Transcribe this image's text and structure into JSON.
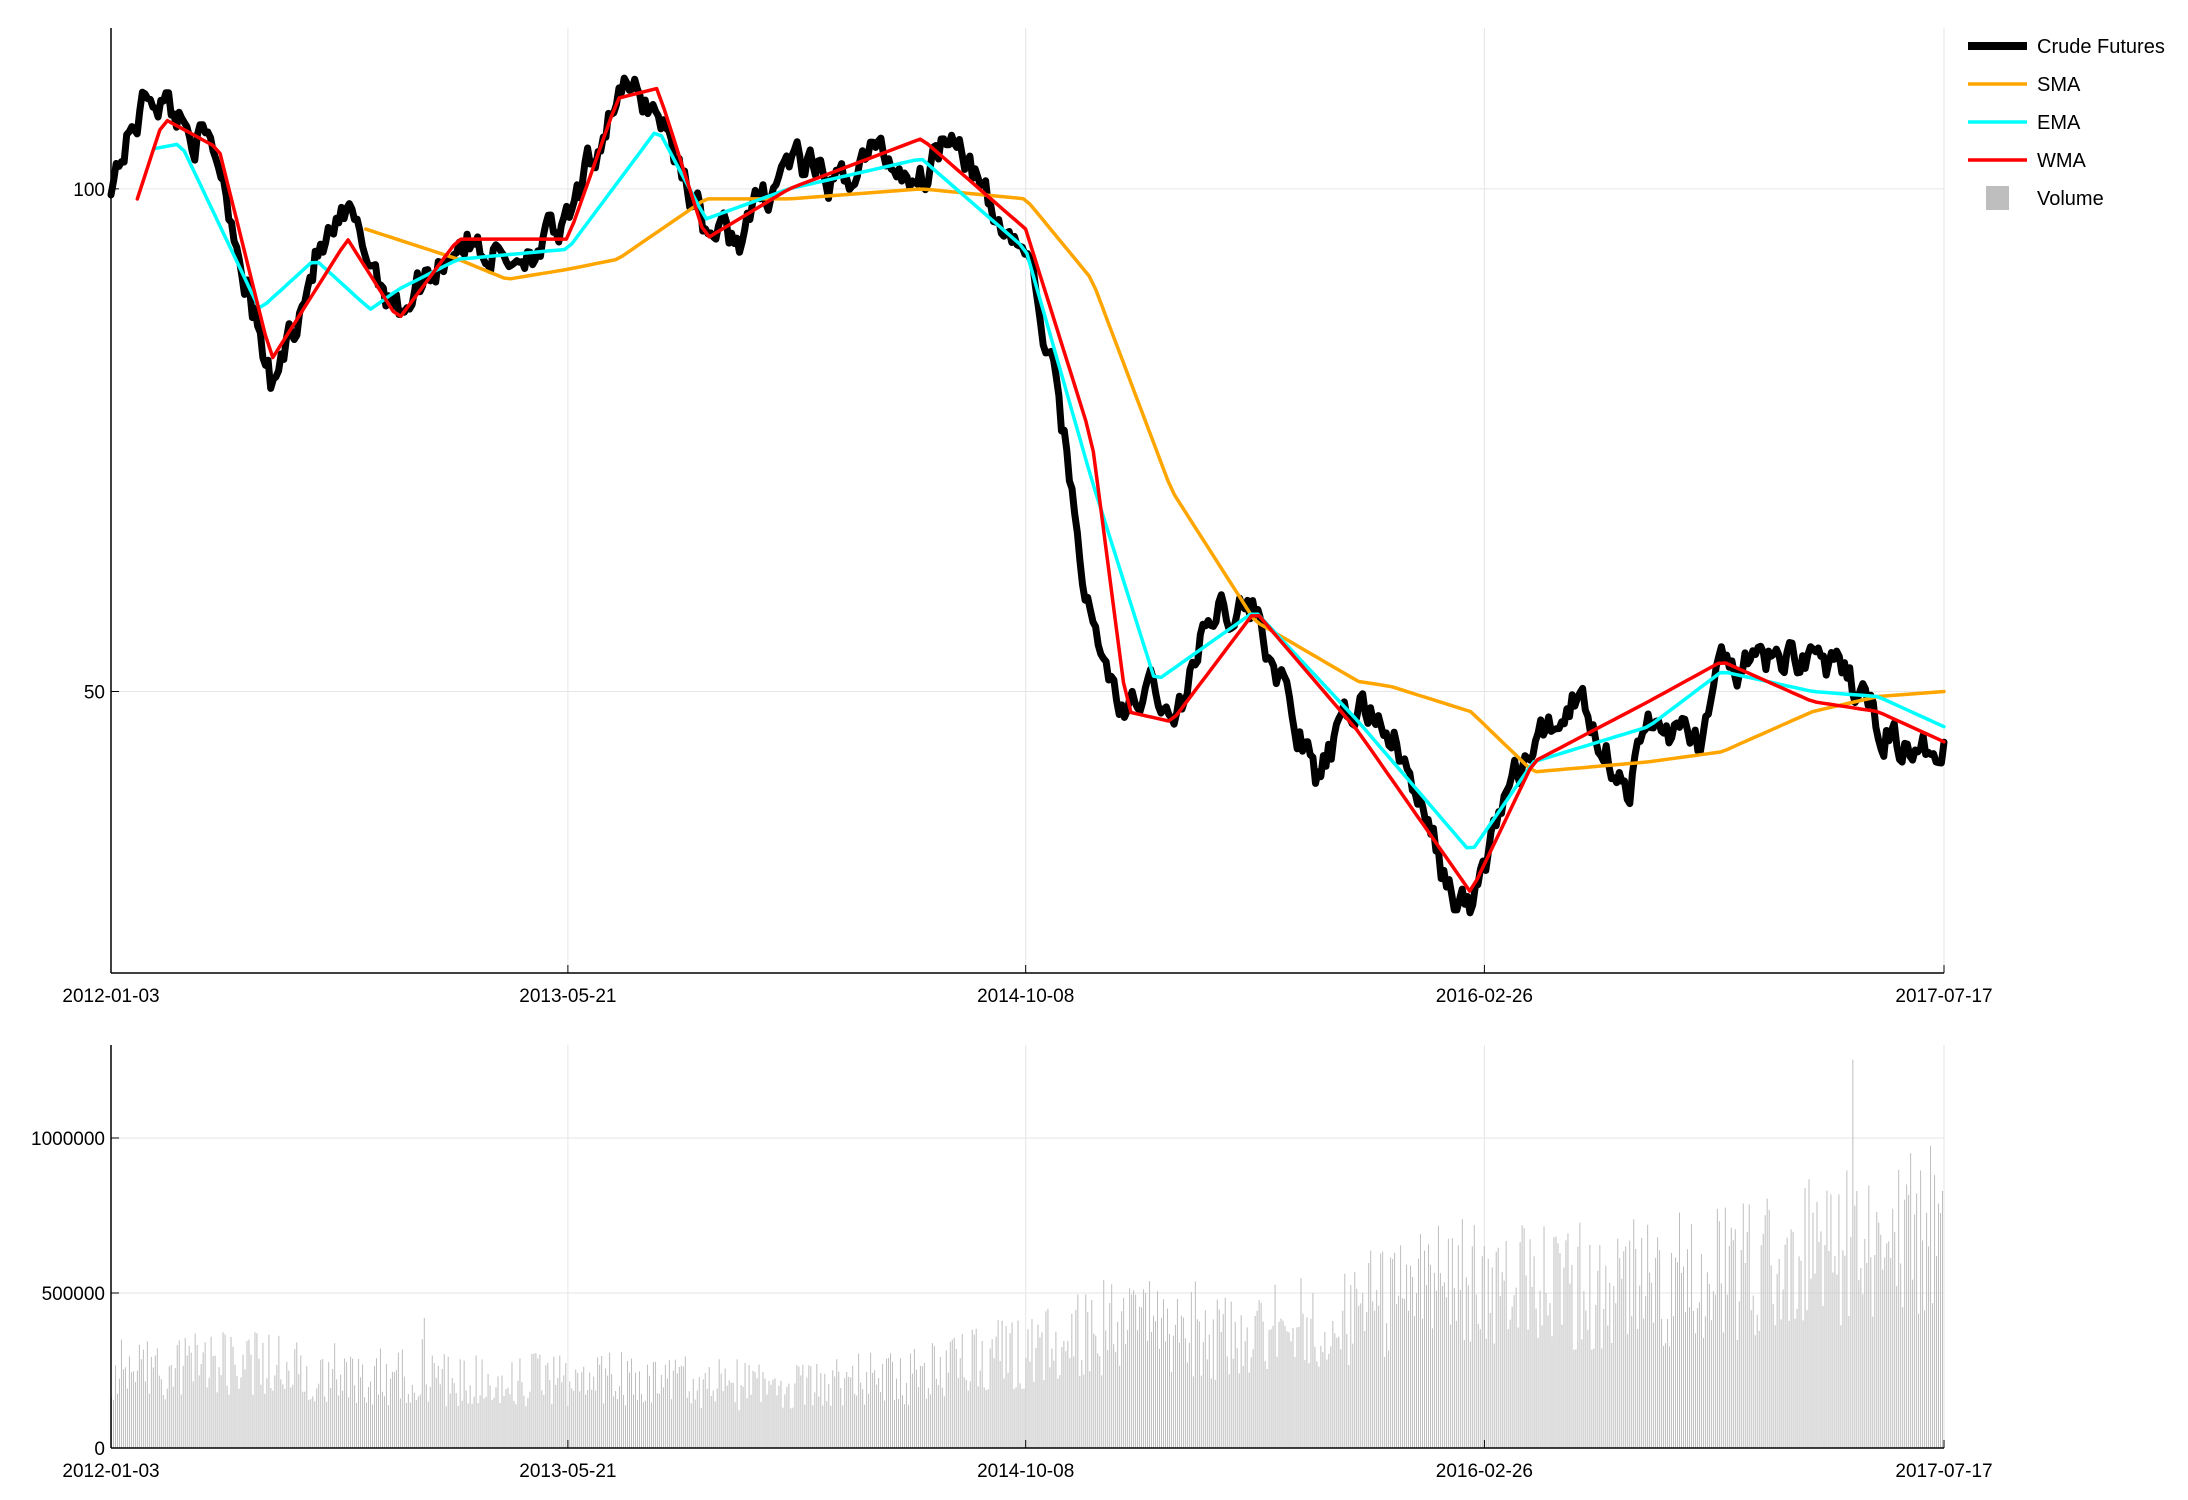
{
  "chart_data": [
    {
      "type": "line",
      "x_ticks": [
        "2012-01-03",
        "2013-05-21",
        "2014-10-08",
        "2016-02-26",
        "2017-07-17"
      ],
      "y_ticks": [
        100,
        50
      ],
      "ylim": [
        22,
        116
      ],
      "grid": true,
      "legend": "top-right",
      "legend_entries": [
        "Crude Futures",
        "SMA",
        "EMA",
        "WMA",
        "Volume"
      ],
      "colors": {
        "crude": "#000000",
        "sma": "#FFA500",
        "ema": "#00FFFF",
        "wma": "#FF0000",
        "volume": "#BEBEBE"
      },
      "series": [
        {
          "name": "Crude Futures",
          "x": [
            "2012-01-03",
            "2012-02-15",
            "2012-03-20",
            "2012-05-01",
            "2012-06-28",
            "2012-08-15",
            "2012-09-20",
            "2012-11-15",
            "2013-01-20",
            "2013-03-15",
            "2013-05-21",
            "2013-07-15",
            "2013-08-28",
            "2013-10-20",
            "2013-11-25",
            "2014-01-20",
            "2014-03-15",
            "2014-04-20",
            "2014-06-15",
            "2014-07-20",
            "2014-09-01",
            "2014-10-08",
            "2014-11-15",
            "2014-12-20",
            "2015-01-28",
            "2015-02-28",
            "2015-03-18",
            "2015-05-05",
            "2015-06-18",
            "2015-08-24",
            "2015-10-10",
            "2015-11-15",
            "2016-01-20",
            "2016-02-11",
            "2016-03-20",
            "2016-04-20",
            "2016-06-08",
            "2016-08-03",
            "2016-08-25",
            "2016-10-20",
            "2016-11-14",
            "2017-01-05",
            "2017-02-22",
            "2017-04-12",
            "2017-05-05",
            "2017-06-21",
            "2017-07-17"
          ],
          "y": [
            101,
            110,
            107,
            103,
            80,
            93,
            97,
            88,
            95,
            93,
            96,
            110,
            108,
            96,
            95,
            103,
            100,
            104,
            101,
            107,
            97,
            94,
            78,
            56,
            47,
            51,
            46,
            59,
            58,
            41,
            49,
            46,
            30,
            28,
            40,
            44,
            50,
            40,
            47,
            45,
            52,
            53,
            54,
            50,
            47,
            43,
            46
          ]
        },
        {
          "name": "SMA",
          "x": [
            "2012-10-10",
            "2013-01-20",
            "2013-03-15",
            "2013-05-21",
            "2013-07-15",
            "2013-10-20",
            "2014-01-20",
            "2014-06-15",
            "2014-10-08",
            "2014-12-20",
            "2015-03-18",
            "2015-06-18",
            "2015-10-10",
            "2015-11-15",
            "2016-02-11",
            "2016-04-20",
            "2016-08-25",
            "2016-11-14",
            "2017-02-22",
            "2017-05-05",
            "2017-07-17"
          ],
          "y": [
            96,
            93,
            91,
            92,
            93,
            99,
            99,
            100,
            99,
            91,
            70,
            57,
            51,
            50.5,
            48,
            42,
            43,
            44,
            48,
            49.5,
            50
          ]
        },
        {
          "name": "EMA",
          "x": [
            "2012-02-20",
            "2012-03-20",
            "2012-06-15",
            "2012-08-15",
            "2012-10-15",
            "2012-11-15",
            "2013-01-20",
            "2013-05-21",
            "2013-08-28",
            "2013-10-20",
            "2014-01-20",
            "2014-06-15",
            "2014-10-08",
            "2014-12-20",
            "2015-02-28",
            "2015-06-18",
            "2015-10-10",
            "2016-02-11",
            "2016-04-20",
            "2016-08-25",
            "2016-11-14",
            "2017-02-22",
            "2017-05-05",
            "2017-07-17"
          ],
          "y": [
            104,
            104.5,
            88,
            93,
            88,
            90,
            93,
            94,
            106,
            97,
            100,
            103,
            94,
            71,
            51,
            58,
            47,
            34,
            43,
            46.5,
            52,
            50,
            49.5,
            46.5
          ]
        },
        {
          "name": "WMA",
          "x": [
            "2012-02-01",
            "2012-03-01",
            "2012-05-01",
            "2012-06-28",
            "2012-09-20",
            "2012-11-15",
            "2013-01-20",
            "2013-05-21",
            "2013-07-15",
            "2013-08-28",
            "2013-10-20",
            "2014-01-20",
            "2014-06-15",
            "2014-10-08",
            "2014-12-20",
            "2015-01-28",
            "2015-03-18",
            "2015-06-18",
            "2015-10-10",
            "2016-02-11",
            "2016-04-20",
            "2016-08-25",
            "2016-11-14",
            "2017-02-22",
            "2017-05-05",
            "2017-07-17"
          ],
          "y": [
            99,
            107,
            104,
            83,
            95,
            87,
            95,
            95,
            109,
            110,
            95,
            100,
            105,
            96,
            75,
            48,
            47,
            58,
            46,
            30,
            43,
            49,
            53,
            49,
            48,
            45
          ]
        }
      ]
    },
    {
      "type": "bar",
      "x_ticks": [
        "2012-01-03",
        "2013-05-21",
        "2014-10-08",
        "2016-02-26",
        "2017-07-17"
      ],
      "y_ticks": [
        "1000000",
        "500000",
        "0"
      ],
      "ylim": [
        0,
        1300000
      ],
      "grid": true,
      "series": [
        {
          "name": "Volume",
          "x": [
            "2012-01-03",
            "2012-06-01",
            "2012-11-01",
            "2013-03-01",
            "2013-08-01",
            "2014-01-01",
            "2014-06-01",
            "2014-10-08",
            "2015-01-15",
            "2015-06-01",
            "2015-10-01",
            "2016-01-15",
            "2016-06-01",
            "2016-11-01",
            "2017-03-01",
            "2017-07-17"
          ],
          "y": [
            280000,
            290000,
            250000,
            230000,
            250000,
            210000,
            250000,
            340000,
            430000,
            390000,
            470000,
            580000,
            560000,
            600000,
            680000,
            780000
          ]
        }
      ]
    }
  ]
}
